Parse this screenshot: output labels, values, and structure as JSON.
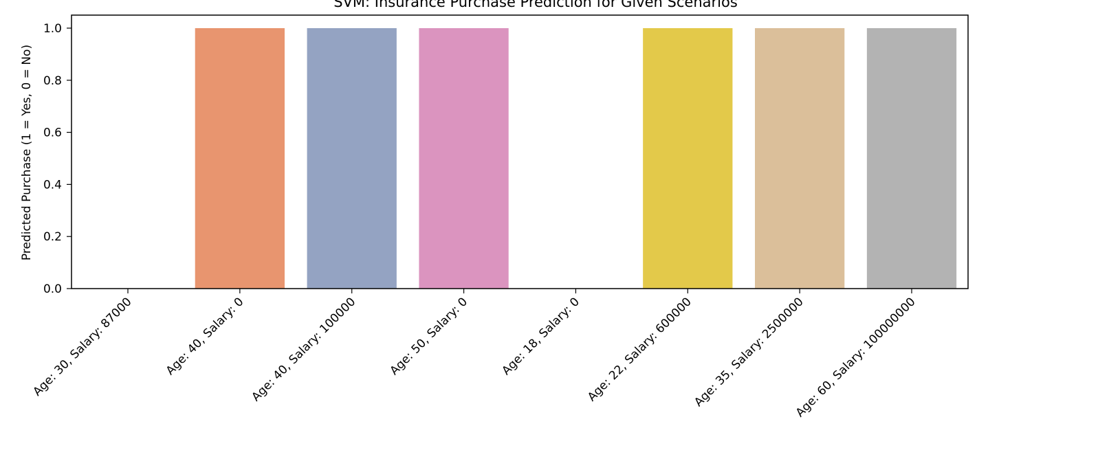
{
  "chart_data": {
    "type": "bar",
    "title": "SVM: Insurance Purchase Prediction for Given Scenarios",
    "xlabel": "",
    "ylabel": "Predicted Purchase (1 = Yes, 0 = No)",
    "ylim": [
      0,
      1.05
    ],
    "yticks": [
      "0.0",
      "0.2",
      "0.4",
      "0.6",
      "0.8",
      "1.0"
    ],
    "grid": false,
    "categories": [
      "Age: 30, Salary: 87000",
      "Age: 40, Salary: 0",
      "Age: 40, Salary: 100000",
      "Age: 50, Salary: 0",
      "Age: 18, Salary: 0",
      "Age: 22, Salary: 600000",
      "Age: 35, Salary: 2500000",
      "Age: 60, Salary: 100000000"
    ],
    "values": [
      0,
      1,
      1,
      1,
      0,
      1,
      1,
      1
    ],
    "colors": [
      "#66c2a5",
      "#e8956f",
      "#94a3c2",
      "#db94bf",
      "#a6d854",
      "#e3c94a",
      "#dbbf9a",
      "#b3b3b3"
    ]
  }
}
